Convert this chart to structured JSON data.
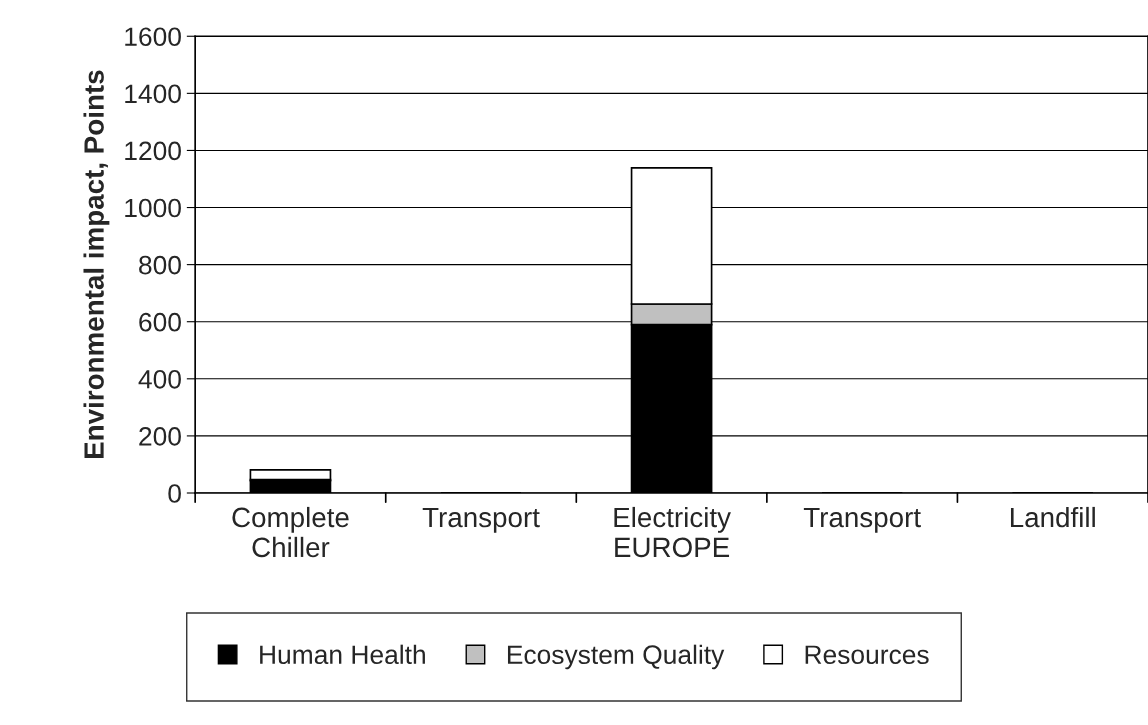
{
  "chart_data": {
    "type": "bar",
    "stacked": true,
    "ylabel": "Environmental impact, Points",
    "categories": [
      "Complete\nChiller",
      "Transport",
      "Electricity\nEUROPE",
      "Transport",
      "Landfill"
    ],
    "series": [
      {
        "name": "Human Health",
        "color": "#000000",
        "values": [
          43,
          0,
          590,
          0,
          0
        ]
      },
      {
        "name": "Ecosystem Quality",
        "color": "#c0c0c0",
        "values": [
          4,
          0,
          72,
          0,
          0
        ]
      },
      {
        "name": "Resources",
        "color": "#ffffff",
        "values": [
          34,
          0,
          477,
          0,
          0
        ]
      }
    ],
    "ylim": [
      0,
      1600
    ],
    "yticks": [
      0,
      200,
      400,
      600,
      800,
      1000,
      1200,
      1400,
      1600
    ],
    "grid": "y",
    "legend": "bottom"
  }
}
